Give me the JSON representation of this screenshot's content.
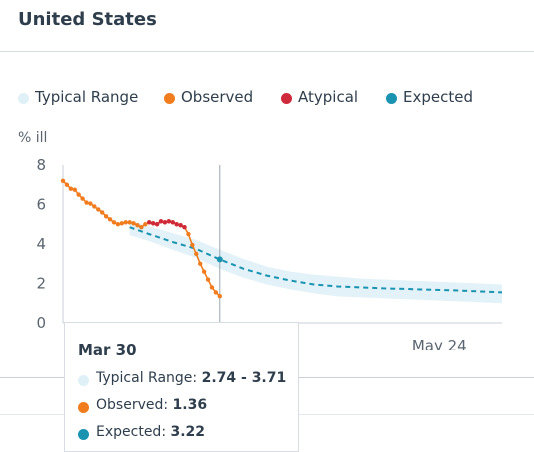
{
  "header": {
    "title": "United States"
  },
  "legend": [
    {
      "label": "Typical Range",
      "color": "#dff1f7"
    },
    {
      "label": "Observed",
      "color": "#f07c1e"
    },
    {
      "label": "Atypical",
      "color": "#cf2a3c"
    },
    {
      "label": "Expected",
      "color": "#1a93b0"
    }
  ],
  "tooltip": {
    "date": "Mar 30",
    "rows": [
      {
        "label": "Typical Range:",
        "value": "2.74 - 3.71",
        "color": "#dff1f7"
      },
      {
        "label": "Observed:",
        "value": "1.36",
        "color": "#f07c1e"
      },
      {
        "label": "Expected:",
        "value": "3.22",
        "color": "#1a93b0"
      }
    ]
  },
  "chart_data": {
    "type": "line",
    "ylabel": "% ill",
    "ylim": [
      0,
      8
    ],
    "yticks": [
      "0",
      "2",
      "4",
      "6",
      "8"
    ],
    "xlim": [
      0,
      112
    ],
    "xticks": [
      {
        "x": 96,
        "label": "May 24"
      }
    ],
    "hover_x": 40,
    "grid": false,
    "legend_position": "top",
    "series": [
      {
        "name": "Typical Range",
        "kind": "band",
        "x": [
          17,
          22,
          28,
          34,
          40,
          46,
          52,
          58,
          64,
          70,
          76,
          82,
          88,
          94,
          100,
          106,
          112
        ],
        "lower": [
          4.45,
          4.15,
          3.7,
          3.3,
          2.74,
          2.3,
          1.95,
          1.7,
          1.5,
          1.35,
          1.3,
          1.25,
          1.2,
          1.15,
          1.1,
          1.05,
          1.0
        ],
        "upper": [
          5.2,
          4.9,
          4.55,
          4.2,
          3.71,
          3.25,
          2.85,
          2.6,
          2.45,
          2.35,
          2.25,
          2.2,
          2.15,
          2.1,
          2.05,
          2.0,
          1.95
        ]
      },
      {
        "name": "Expected",
        "kind": "dashed",
        "x": [
          17,
          22,
          28,
          34,
          40,
          46,
          52,
          58,
          64,
          70,
          76,
          82,
          88,
          94,
          100,
          106,
          112
        ],
        "y": [
          4.85,
          4.5,
          4.1,
          3.75,
          3.22,
          2.75,
          2.4,
          2.15,
          1.95,
          1.85,
          1.8,
          1.75,
          1.72,
          1.68,
          1.65,
          1.6,
          1.55
        ]
      },
      {
        "name": "Observed",
        "kind": "line_points",
        "x": [
          0,
          1,
          2,
          3,
          4,
          5,
          6,
          7,
          8,
          9,
          10,
          11,
          12,
          13,
          14,
          15,
          16,
          17,
          18,
          19,
          20,
          21,
          22,
          23,
          24,
          25,
          26,
          27,
          28,
          29,
          30,
          31,
          32,
          33,
          34,
          35,
          36,
          37,
          38,
          39,
          40
        ],
        "y": [
          7.2,
          7.0,
          6.8,
          6.75,
          6.5,
          6.3,
          6.1,
          6.05,
          5.9,
          5.75,
          5.6,
          5.4,
          5.25,
          5.1,
          5.0,
          5.05,
          5.1,
          5.1,
          5.05,
          4.95,
          4.85,
          5.0,
          5.1,
          5.05,
          5.0,
          5.15,
          5.1,
          5.15,
          5.1,
          5.0,
          4.95,
          4.85,
          4.5,
          3.95,
          3.5,
          3.0,
          2.6,
          2.2,
          1.8,
          1.55,
          1.36
        ]
      },
      {
        "name": "Atypical",
        "kind": "points",
        "x": [
          22,
          23,
          24,
          25,
          26,
          27,
          28,
          29,
          30,
          31
        ],
        "y": [
          5.1,
          5.05,
          5.0,
          5.15,
          5.1,
          5.15,
          5.1,
          5.0,
          4.95,
          4.85
        ]
      }
    ]
  }
}
